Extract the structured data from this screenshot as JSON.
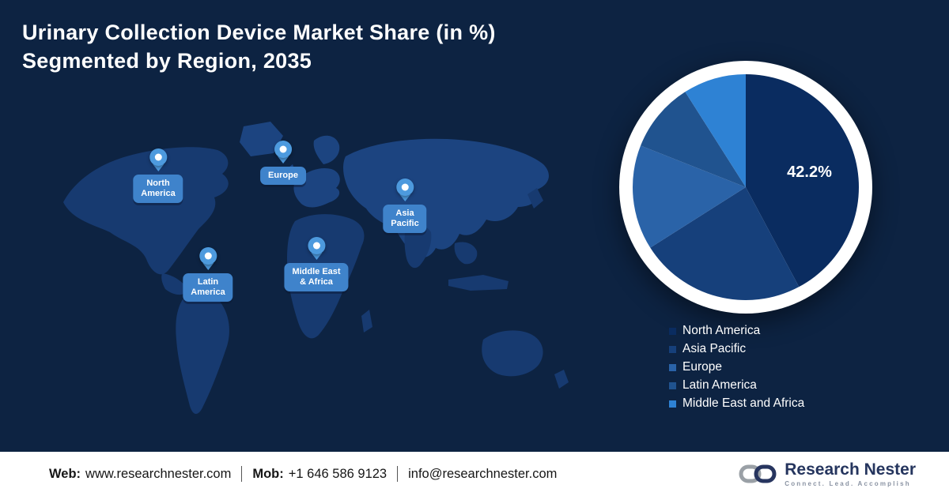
{
  "title": {
    "line1": "Urinary Collection Device Market Share (in %)",
    "line2": "Segmented by Region, 2035"
  },
  "map": {
    "pins": [
      {
        "label": "North\nAmerica"
      },
      {
        "label": "Europe"
      },
      {
        "label": "Asia\nPacific"
      },
      {
        "label": "Latin\nAmerica"
      },
      {
        "label": "Middle East\n& Africa"
      }
    ]
  },
  "chart_data": {
    "type": "pie",
    "title": "Urinary Collection Device Market Share (in %) Segmented by Region, 2035",
    "labels": [
      "North America",
      "Asia Pacific",
      "Europe",
      "Latin America",
      "Middle East and Africa"
    ],
    "values": [
      42.2,
      23.8,
      15.0,
      10.0,
      9.0
    ],
    "colors": [
      "#0a2c60",
      "#16407b",
      "#2a63a8",
      "#20538f",
      "#2e82d4"
    ],
    "data_labels": [
      "42.2%",
      "",
      "",
      "",
      ""
    ],
    "start_angle_deg": 0,
    "direction": "clockwise",
    "legend_position": "bottom-right"
  },
  "footer": {
    "web_label": "Web:",
    "web_value": "www.researchnester.com",
    "mob_label": "Mob:",
    "mob_value": "+1 646 586 9123",
    "email": "info@researchnester.com",
    "logo": {
      "name": "Research Nester",
      "tagline": "Connect. Lead. Accomplish"
    }
  }
}
